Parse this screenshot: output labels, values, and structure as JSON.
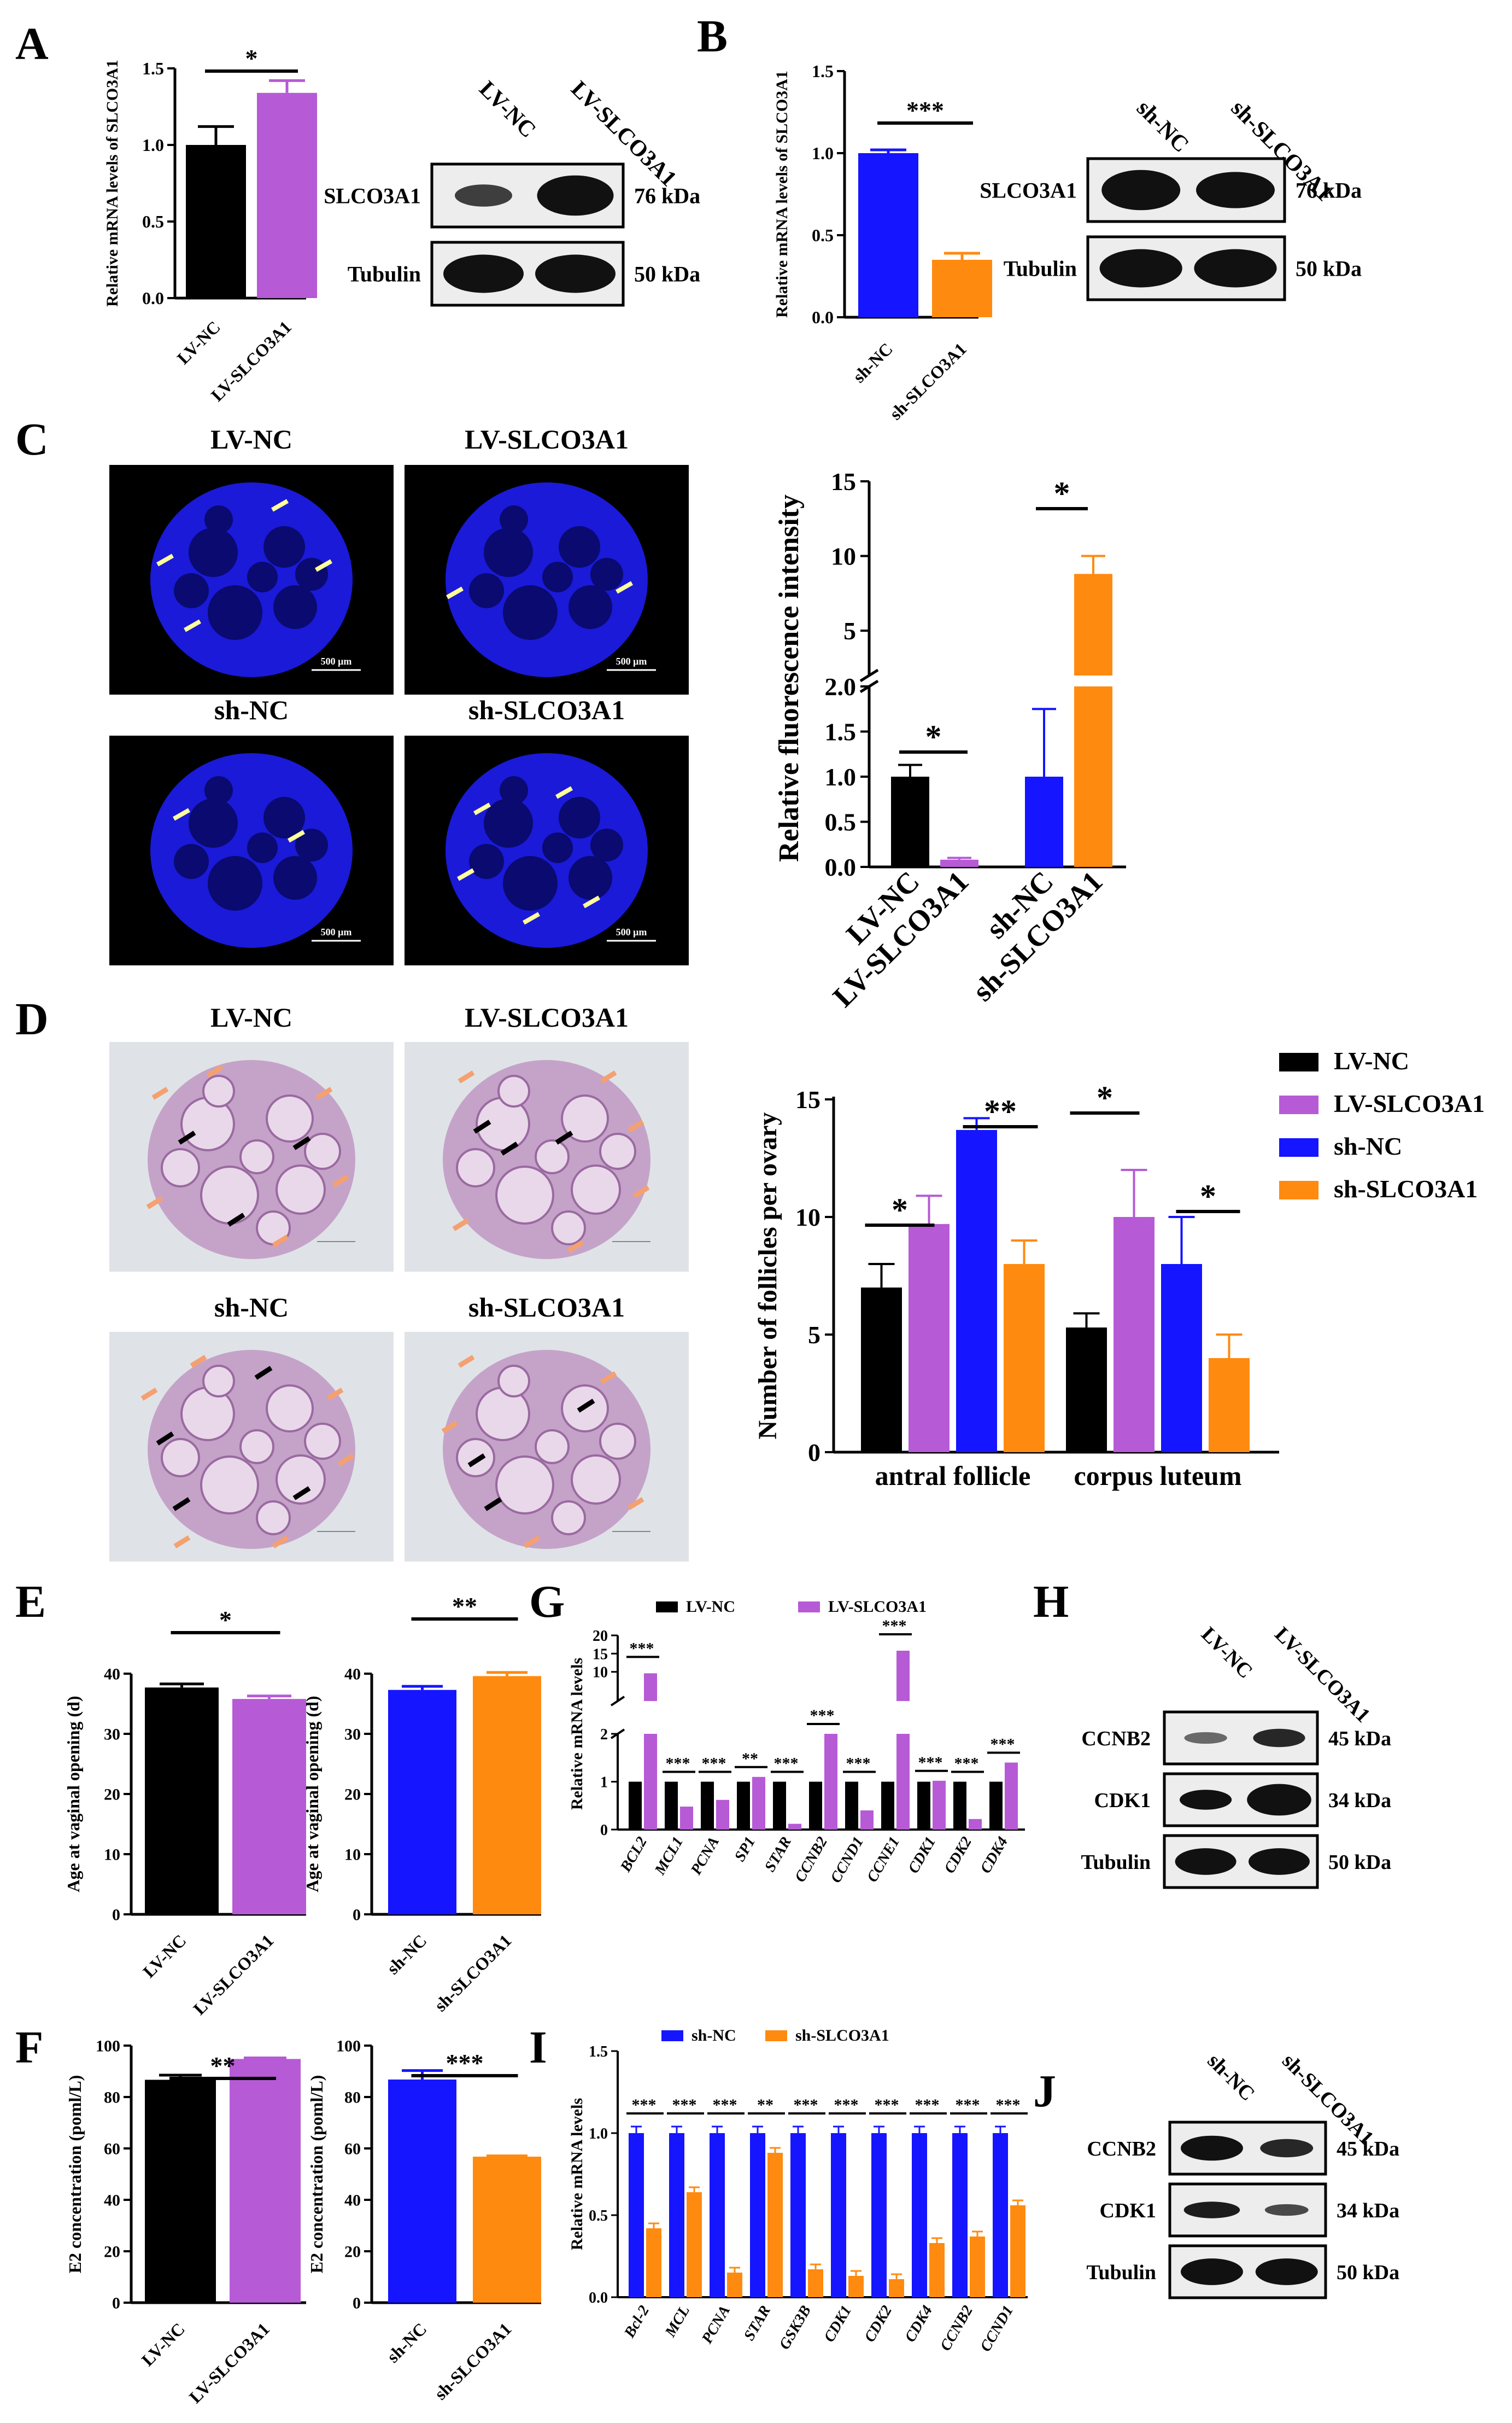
{
  "panels": {
    "A": "A",
    "B": "B",
    "C": "C",
    "D": "D",
    "E": "E",
    "F": "F",
    "G": "G",
    "H": "H",
    "I": "I",
    "J": "J"
  },
  "colors": {
    "lvnc": "#000000",
    "lvslco": "#b65ad6",
    "shnc": "#1515ff",
    "shslco": "#ff8a10",
    "blot_bg": "#ededed",
    "band": "#111111"
  },
  "panelA": {
    "ylabel": "Relative mRNA levels of SLCO3A1",
    "categories": [
      "LV-NC",
      "LV-SLCO3A1"
    ],
    "values": [
      1.0,
      1.34
    ],
    "errors": [
      0.12,
      0.08
    ],
    "ticks": [
      "0.0",
      "0.5",
      "1.0",
      "1.5"
    ],
    "sig": "*",
    "blot": {
      "lanes": [
        "LV-NC",
        "LV-SLCO3A1"
      ],
      "rows": [
        {
          "label": "SLCO3A1",
          "kda": "76 kDa"
        },
        {
          "label": "Tubulin",
          "kda": "50 kDa"
        }
      ]
    }
  },
  "panelB": {
    "ylabel": "Relative mRNA levels of SLCO3A1",
    "categories": [
      "sh-NC",
      "sh-SLCO3A1"
    ],
    "values": [
      1.0,
      0.35
    ],
    "errors": [
      0.02,
      0.04
    ],
    "ticks": [
      "0.0",
      "0.5",
      "1.0",
      "1.5"
    ],
    "sig": "***",
    "blot": {
      "lanes": [
        "sh-NC",
        "sh-SLCO3A1"
      ],
      "rows": [
        {
          "label": "SLCO3A1",
          "kda": "76 kDa"
        },
        {
          "label": "Tubulin",
          "kda": "50 kDa"
        }
      ]
    }
  },
  "panelC": {
    "images": [
      {
        "title": "LV-NC",
        "scale": "500 μm"
      },
      {
        "title": "LV-SLCO3A1",
        "scale": "500 μm"
      },
      {
        "title": "sh-NC",
        "scale": "500 μm"
      },
      {
        "title": "sh-SLCO3A1",
        "scale": "500 μm"
      }
    ],
    "ylabel": "Relative fluorescence intensity",
    "ticks_low": [
      "0.0",
      "0.5",
      "1.0",
      "1.5",
      "2.0"
    ],
    "ticks_high": [
      "5",
      "10",
      "15"
    ],
    "categories": [
      "LV-NC",
      "LV-SLCO3A1",
      "sh-NC",
      "sh-SLCO3A1"
    ],
    "values": [
      1.0,
      0.08,
      1.0,
      8.8
    ],
    "errors": [
      0.13,
      0.02,
      0.75,
      1.2
    ],
    "sig": [
      "*",
      "*"
    ]
  },
  "panelD": {
    "images": [
      {
        "title": "LV-NC"
      },
      {
        "title": "LV-SLCO3A1"
      },
      {
        "title": "sh-NC"
      },
      {
        "title": "sh-SLCO3A1"
      }
    ],
    "legend": [
      "LV-NC",
      "LV-SLCO3A1",
      "sh-NC",
      "sh-SLCO3A1"
    ],
    "ylabel": "Number of follicles per ovary",
    "groups": [
      "antral follicle",
      "corpus luteum"
    ],
    "ticks": [
      "0",
      "5",
      "10",
      "15"
    ],
    "values": [
      [
        7.0,
        9.7,
        13.7,
        8.0
      ],
      [
        5.3,
        10.0,
        8.0,
        4.0
      ]
    ],
    "errors": [
      [
        1.0,
        1.2,
        0.5,
        1.0
      ],
      [
        0.6,
        2.0,
        2.0,
        1.0
      ]
    ],
    "sig": [
      "*",
      "**",
      "*",
      "*"
    ]
  },
  "panelE": {
    "ylabel": "Age at vaginal opening (d)",
    "ticks": [
      "0",
      "10",
      "20",
      "30",
      "40"
    ],
    "left": {
      "categories": [
        "LV-NC",
        "LV-SLCO3A1"
      ],
      "values": [
        37.7,
        35.8
      ],
      "errors": [
        0.6,
        0.5
      ],
      "sig": "*"
    },
    "right": {
      "categories": [
        "sh-NC",
        "sh-SLCO3A1"
      ],
      "values": [
        37.3,
        39.6
      ],
      "errors": [
        0.6,
        0.6
      ],
      "sig": "**"
    }
  },
  "panelF": {
    "ylabel": "E2 concentration (poml/L)",
    "ticks": [
      "0",
      "20",
      "40",
      "60",
      "80",
      "100"
    ],
    "left": {
      "categories": [
        "LV-NC",
        "LV-SLCO3A1"
      ],
      "values": [
        86.7,
        94.8
      ],
      "errors": [
        1.8,
        0.4
      ],
      "sig": "**"
    },
    "right": {
      "categories": [
        "sh-NC",
        "sh-SLCO3A1"
      ],
      "values": [
        86.8,
        56.8
      ],
      "errors": [
        3.5,
        0.3
      ],
      "sig": "***"
    }
  },
  "panelG": {
    "legend": [
      "LV-NC",
      "LV-SLCO3A1"
    ],
    "ylabel": "Relative mRNA levels",
    "genes": [
      "BCL2",
      "MCL1",
      "PCNA",
      "SP1",
      "STAR",
      "CCNB2",
      "CCND1",
      "CCNE1",
      "CDK1",
      "CDK2",
      "CDK4"
    ],
    "ticks_low": [
      "0",
      "1",
      "2"
    ],
    "ticks_high": [
      "10",
      "15",
      "20"
    ],
    "nc": [
      1,
      1,
      1,
      1,
      1,
      1,
      1,
      1,
      1,
      1,
      1
    ],
    "treat": [
      9.6,
      0.48,
      0.62,
      1.1,
      0.12,
      2.0,
      0.4,
      15.8,
      1.02,
      0.22,
      1.4
    ],
    "sig": [
      "***",
      "***",
      "***",
      "**",
      "***",
      "***",
      "***",
      "***",
      "***",
      "***",
      "***"
    ]
  },
  "panelH": {
    "lanes": [
      "LV-NC",
      "LV-SLCO3A1"
    ],
    "rows": [
      {
        "label": "CCNB2",
        "kda": "45 kDa"
      },
      {
        "label": "CDK1",
        "kda": "34 kDa"
      },
      {
        "label": "Tubulin",
        "kda": "50 kDa"
      }
    ]
  },
  "panelI": {
    "legend": [
      "sh-NC",
      "sh-SLCO3A1"
    ],
    "ylabel": "Relative mRNA levels",
    "genes": [
      "Bcl-2",
      "MCL",
      "PCNA",
      "STAR",
      "GSK3B",
      "CDK1",
      "CDK2",
      "CDK4",
      "CCNB2",
      "CCND1"
    ],
    "ticks": [
      "0.0",
      "0.5",
      "1.0",
      "1.5"
    ],
    "nc": [
      1,
      1,
      1,
      1,
      1,
      1,
      1,
      1,
      1,
      1
    ],
    "treat": [
      0.42,
      0.64,
      0.15,
      0.88,
      0.17,
      0.13,
      0.11,
      0.33,
      0.37,
      0.56
    ],
    "sig": [
      "***",
      "***",
      "***",
      "**",
      "***",
      "***",
      "***",
      "***",
      "***",
      "***"
    ]
  },
  "panelJ": {
    "lanes": [
      "sh-NC",
      "sh-SLCO3A1"
    ],
    "rows": [
      {
        "label": "CCNB2",
        "kda": "45 kDa"
      },
      {
        "label": "CDK1",
        "kda": "34 kDa"
      },
      {
        "label": "Tubulin",
        "kda": "50 kDa"
      }
    ]
  }
}
